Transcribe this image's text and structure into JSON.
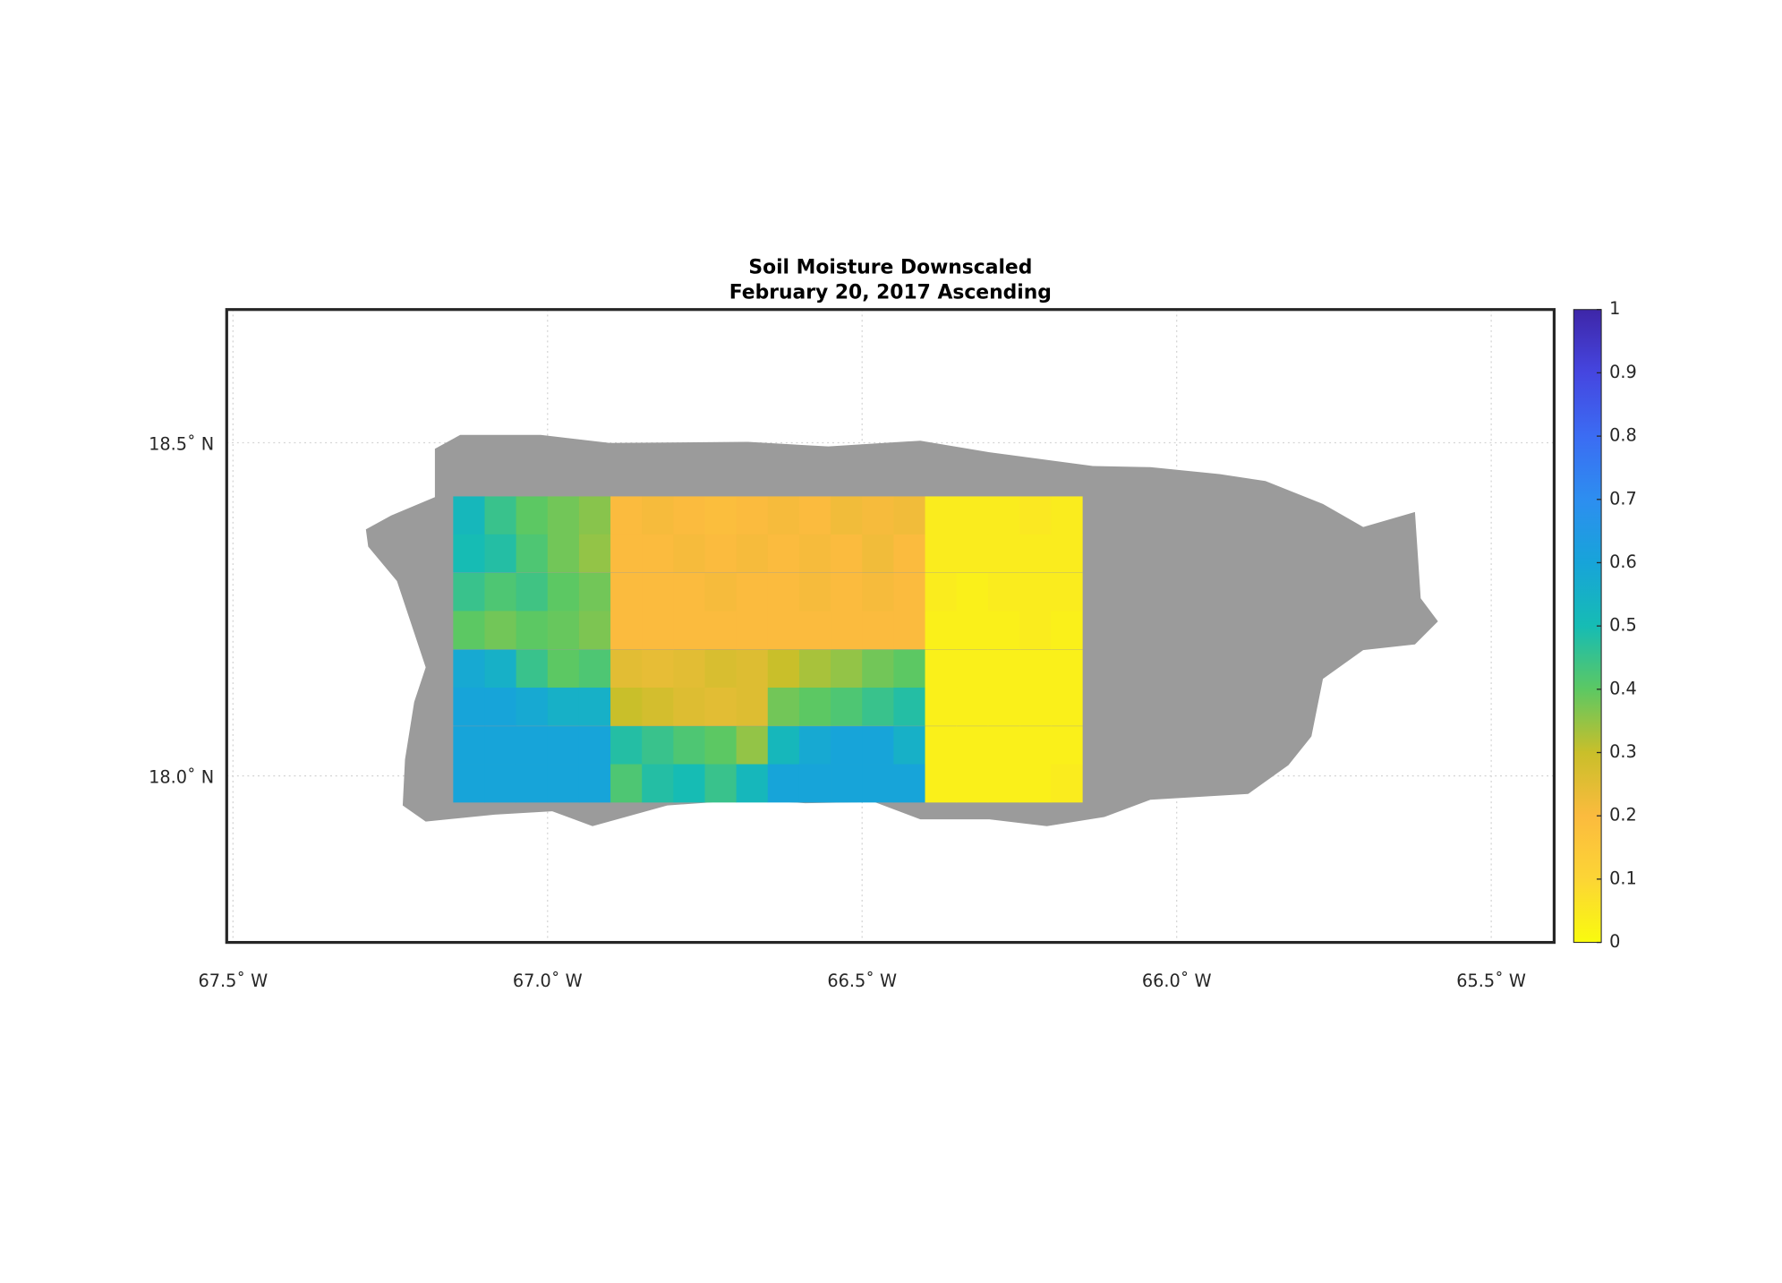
{
  "chart_data": {
    "type": "heatmap",
    "title": "Soil Moisture Downscaled",
    "subtitle": "February 20, 2017 Ascending",
    "xlim": [
      -67.51,
      -65.4
    ],
    "ylim": [
      17.75,
      18.7
    ],
    "xticks": [
      {
        "value": -67.5,
        "label": "67.5˚ W"
      },
      {
        "value": -67.0,
        "label": "67.0˚ W"
      },
      {
        "value": -66.5,
        "label": "66.5˚ W"
      },
      {
        "value": -66.0,
        "label": "66.0˚ W"
      },
      {
        "value": -65.5,
        "label": "65.5˚ W"
      }
    ],
    "yticks": [
      {
        "value": 18.0,
        "label": "18.0˚ N"
      },
      {
        "value": 18.5,
        "label": "18.5˚ N"
      }
    ],
    "grid": true,
    "x": [
      -67.125,
      -67.075,
      -67.025,
      -66.975,
      -66.925,
      -66.875,
      -66.825,
      -66.775,
      -66.725,
      -66.675,
      -66.625,
      -66.575,
      -66.525,
      -66.475,
      -66.425,
      -66.375,
      -66.325,
      -66.275,
      -66.225,
      -66.175
    ],
    "y": [
      18.391,
      18.334,
      18.276,
      18.219,
      18.161,
      18.104,
      18.046,
      17.989
    ],
    "values": [
      [
        0.52,
        0.45,
        0.4,
        0.38,
        0.36,
        0.2,
        0.21,
        0.2,
        0.19,
        0.2,
        0.21,
        0.2,
        0.22,
        0.21,
        0.22,
        0.04,
        0.04,
        0.04,
        0.05,
        0.04
      ],
      [
        0.5,
        0.48,
        0.42,
        0.38,
        0.35,
        0.2,
        0.2,
        0.21,
        0.2,
        0.21,
        0.2,
        0.21,
        0.2,
        0.22,
        0.2,
        0.04,
        0.04,
        0.04,
        0.04,
        0.04
      ],
      [
        0.45,
        0.42,
        0.44,
        0.4,
        0.38,
        0.2,
        0.2,
        0.2,
        0.21,
        0.2,
        0.2,
        0.21,
        0.2,
        0.21,
        0.2,
        0.04,
        0.03,
        0.04,
        0.04,
        0.04
      ],
      [
        0.4,
        0.38,
        0.4,
        0.39,
        0.37,
        0.2,
        0.2,
        0.2,
        0.2,
        0.2,
        0.2,
        0.2,
        0.2,
        0.2,
        0.2,
        0.03,
        0.03,
        0.03,
        0.04,
        0.03
      ],
      [
        0.58,
        0.55,
        0.45,
        0.4,
        0.42,
        0.25,
        0.24,
        0.25,
        0.27,
        0.26,
        0.3,
        0.33,
        0.35,
        0.38,
        0.4,
        0.03,
        0.03,
        0.03,
        0.03,
        0.03
      ],
      [
        0.6,
        0.6,
        0.58,
        0.55,
        0.55,
        0.3,
        0.28,
        0.26,
        0.25,
        0.26,
        0.38,
        0.4,
        0.42,
        0.45,
        0.48,
        0.03,
        0.03,
        0.03,
        0.03,
        0.03
      ],
      [
        0.6,
        0.6,
        0.6,
        0.6,
        0.6,
        0.48,
        0.45,
        0.42,
        0.4,
        0.35,
        0.52,
        0.58,
        0.6,
        0.6,
        0.55,
        0.03,
        0.03,
        0.03,
        0.03,
        0.03
      ],
      [
        0.6,
        0.6,
        0.6,
        0.6,
        0.6,
        0.42,
        0.48,
        0.5,
        0.45,
        0.52,
        0.6,
        0.6,
        0.6,
        0.6,
        0.6,
        0.03,
        0.03,
        0.03,
        0.03,
        0.04
      ]
    ],
    "clim": [
      0,
      1
    ],
    "cticks": [
      0,
      0.1,
      0.2,
      0.3,
      0.4,
      0.5,
      0.6,
      0.7,
      0.8,
      0.9,
      1
    ],
    "colormap": [
      "#f9fb0e",
      "#fcd535",
      "#fbbb3e",
      "#c9bf2a",
      "#5cc863",
      "#16bcb4",
      "#17a4d9",
      "#2d8ef0",
      "#3b6cf3",
      "#4546e0",
      "#3e26a8"
    ],
    "land_color": "#9b9b9b"
  }
}
